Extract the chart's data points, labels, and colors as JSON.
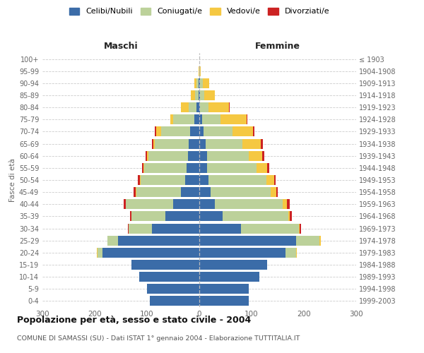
{
  "age_groups": [
    "0-4",
    "5-9",
    "10-14",
    "15-19",
    "20-24",
    "25-29",
    "30-34",
    "35-39",
    "40-44",
    "45-49",
    "50-54",
    "55-59",
    "60-64",
    "65-69",
    "70-74",
    "75-79",
    "80-84",
    "85-89",
    "90-94",
    "95-99",
    "100+"
  ],
  "birth_years": [
    "1999-2003",
    "1994-1998",
    "1989-1993",
    "1984-1988",
    "1979-1983",
    "1974-1978",
    "1969-1973",
    "1964-1968",
    "1959-1963",
    "1954-1958",
    "1949-1953",
    "1944-1948",
    "1939-1943",
    "1934-1938",
    "1929-1933",
    "1924-1928",
    "1919-1923",
    "1914-1918",
    "1909-1913",
    "1904-1908",
    "≤ 1903"
  ],
  "maschi": {
    "celibi": [
      95,
      100,
      115,
      130,
      185,
      155,
      90,
      65,
      50,
      35,
      27,
      25,
      22,
      20,
      18,
      10,
      5,
      2,
      2,
      0,
      0
    ],
    "coniugati": [
      0,
      0,
      0,
      0,
      10,
      20,
      45,
      65,
      90,
      85,
      85,
      80,
      75,
      65,
      55,
      40,
      15,
      6,
      3,
      0,
      0
    ],
    "vedovi": [
      0,
      0,
      0,
      0,
      1,
      0,
      0,
      0,
      1,
      1,
      2,
      2,
      3,
      3,
      10,
      5,
      15,
      8,
      5,
      1,
      0
    ],
    "divorziati": [
      0,
      0,
      0,
      0,
      0,
      0,
      1,
      2,
      4,
      4,
      3,
      3,
      3,
      3,
      2,
      1,
      0,
      0,
      0,
      0,
      0
    ]
  },
  "femmine": {
    "nubili": [
      95,
      95,
      115,
      130,
      165,
      185,
      80,
      45,
      30,
      22,
      18,
      15,
      15,
      12,
      8,
      5,
      2,
      2,
      2,
      0,
      0
    ],
    "coniugate": [
      0,
      0,
      0,
      0,
      20,
      45,
      110,
      125,
      130,
      115,
      110,
      95,
      80,
      70,
      55,
      35,
      15,
      8,
      5,
      1,
      0
    ],
    "vedove": [
      0,
      0,
      0,
      0,
      1,
      2,
      2,
      3,
      8,
      10,
      15,
      20,
      25,
      35,
      40,
      50,
      40,
      20,
      12,
      2,
      0
    ],
    "divorziate": [
      0,
      0,
      0,
      0,
      0,
      0,
      2,
      4,
      5,
      3,
      3,
      4,
      4,
      4,
      3,
      2,
      1,
      0,
      0,
      0,
      0
    ]
  },
  "colors": {
    "celibi": "#3b6ca8",
    "coniugati": "#bcd19a",
    "vedovi": "#f5c842",
    "divorziati": "#cc2222"
  },
  "title": "Popolazione per età, sesso e stato civile - 2004",
  "subtitle": "COMUNE DI SAMASSI (SU) - Dati ISTAT 1° gennaio 2004 - Elaborazione TUTTITALIA.IT",
  "xlabel_left": "Maschi",
  "xlabel_right": "Femmine",
  "ylabel_left": "Fasce di età",
  "xlim": 300,
  "xticks": [
    -300,
    -200,
    -100,
    0,
    100,
    200,
    300
  ],
  "legend_labels": [
    "Celibi/Nubili",
    "Coniugati/e",
    "Vedovi/e",
    "Divorziati/e"
  ]
}
